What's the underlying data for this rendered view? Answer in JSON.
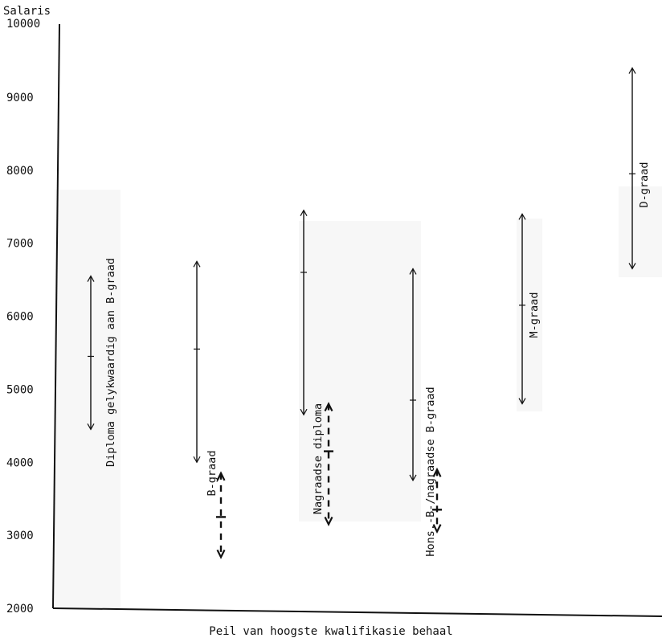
{
  "chart_data": {
    "type": "range",
    "ylabel": "Salaris",
    "xlabel": "Peil van hoogste kwalifikasie behaal",
    "ylim": [
      2000,
      10000
    ],
    "yticks": [
      2000,
      3000,
      4000,
      5000,
      6000,
      7000,
      8000,
      9000,
      10000
    ],
    "grid": false,
    "series": [
      {
        "name": "Diploma gelykwaardig aan B-graad",
        "solid": {
          "min": 4450,
          "max": 6550,
          "mid": 5450
        }
      },
      {
        "name": "B-graad",
        "solid": {
          "min": 4000,
          "max": 6750,
          "mid": 5550
        },
        "dashed": {
          "min": 2700,
          "max": 3850,
          "mid": 3250
        }
      },
      {
        "name": "Nagraadse diploma",
        "solid": {
          "min": 4650,
          "max": 7450,
          "mid": 6600
        },
        "dashed": {
          "min": 3150,
          "max": 4800,
          "mid": 4150
        }
      },
      {
        "name": "Hons.-B-/nagraadse B-graad",
        "solid": {
          "min": 3750,
          "max": 6650,
          "mid": 4850
        },
        "dashed": {
          "min": 3050,
          "max": 3900,
          "mid": 3350
        }
      },
      {
        "name": "M-graad",
        "solid": {
          "min": 4800,
          "max": 7400,
          "mid": 6150
        }
      },
      {
        "name": "D-graad",
        "solid": {
          "min": 6650,
          "max": 9400,
          "mid": 7950
        }
      }
    ]
  }
}
